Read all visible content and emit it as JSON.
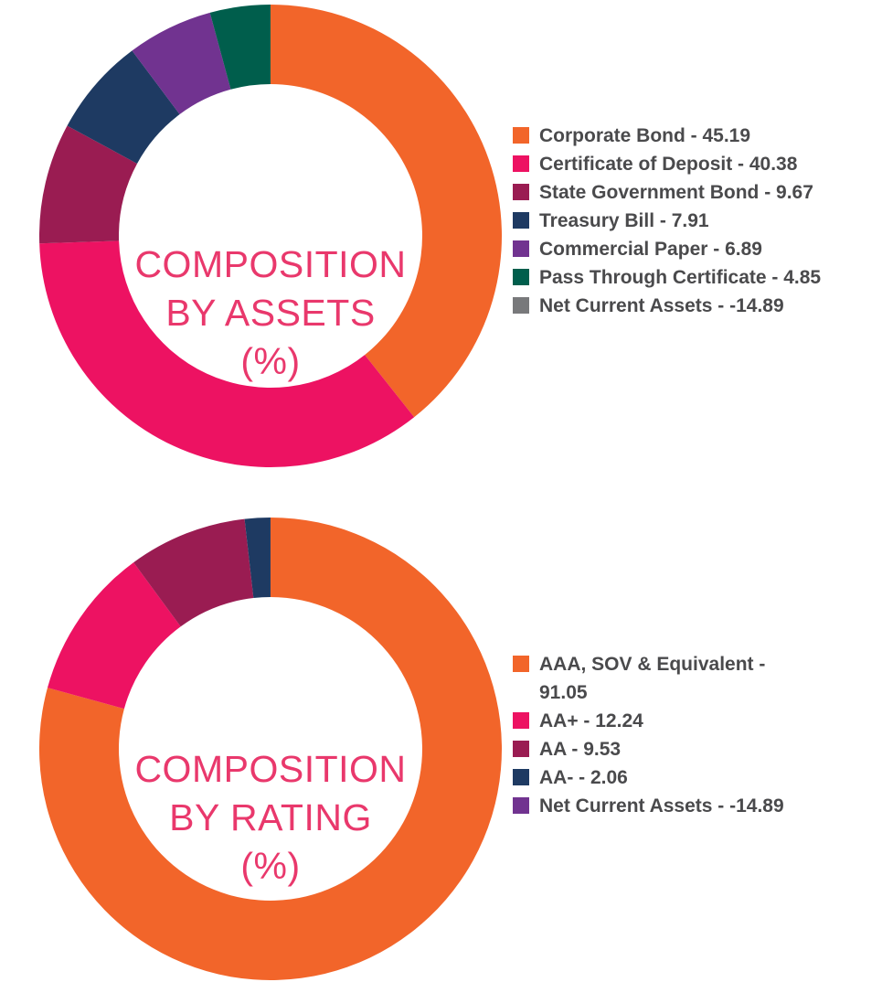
{
  "page": {
    "background": "#FFFFFF"
  },
  "colors": {
    "title_pink": "#E9386C",
    "legend_text": "#4A4A4C",
    "orange": "#F2652A",
    "pink": "#ED1262",
    "maroon": "#9A1C52",
    "navy": "#1E3A62",
    "purple": "#713390",
    "teal": "#005E4C",
    "gray": "#78797B"
  },
  "chart_data": [
    {
      "type": "pie",
      "variant": "donut",
      "title": "COMPOSITION BY ASSETS (%)",
      "title_display": "COMPOSITION\nBY ASSETS\n(%)",
      "legend_position": "right",
      "start_angle_deg": 0,
      "direction": "clockwise",
      "segments": [
        {
          "label": "Corporate Bond",
          "value": 45.19,
          "color": "#F2652A",
          "legend_text": "Corporate Bond - 45.19"
        },
        {
          "label": "Certificate of Deposit",
          "value": 40.38,
          "color": "#ED1262",
          "legend_text": "Certificate of Deposit - 40.38"
        },
        {
          "label": "State Government Bond",
          "value": 9.67,
          "color": "#9A1C52",
          "legend_text": "State Government Bond - 9.67"
        },
        {
          "label": "Treasury Bill",
          "value": 7.91,
          "color": "#1E3A62",
          "legend_text": "Treasury Bill - 7.91"
        },
        {
          "label": "Commercial Paper",
          "value": 6.89,
          "color": "#713390",
          "legend_text": "Commercial Paper - 6.89"
        },
        {
          "label": "Pass Through Certificate",
          "value": 4.85,
          "color": "#005E4C",
          "legend_text": "Pass Through Certificate - 4.85"
        },
        {
          "label": "Net Current Assets",
          "value": -14.89,
          "color": "#78797B",
          "legend_text": "Net Current Assets - -14.89"
        }
      ]
    },
    {
      "type": "pie",
      "variant": "donut",
      "title": "COMPOSITION BY RATING (%)",
      "title_display": "COMPOSITION\nBY RATING\n(%)",
      "legend_position": "right",
      "start_angle_deg": 0,
      "direction": "clockwise",
      "segments": [
        {
          "label": "AAA, SOV & Equivalent",
          "value": 91.05,
          "color": "#F2652A",
          "legend_text": "AAA, SOV & Equivalent -\n91.05"
        },
        {
          "label": "AA+",
          "value": 12.24,
          "color": "#ED1262",
          "legend_text": "AA+ - 12.24"
        },
        {
          "label": "AA",
          "value": 9.53,
          "color": "#9A1C52",
          "legend_text": "AA - 9.53"
        },
        {
          "label": "AA-",
          "value": 2.06,
          "color": "#1E3A62",
          "legend_text": "AA- - 2.06"
        },
        {
          "label": "Net Current Assets",
          "value": -14.89,
          "color": "#713390",
          "legend_text": "Net Current Assets - -14.89"
        }
      ]
    }
  ]
}
